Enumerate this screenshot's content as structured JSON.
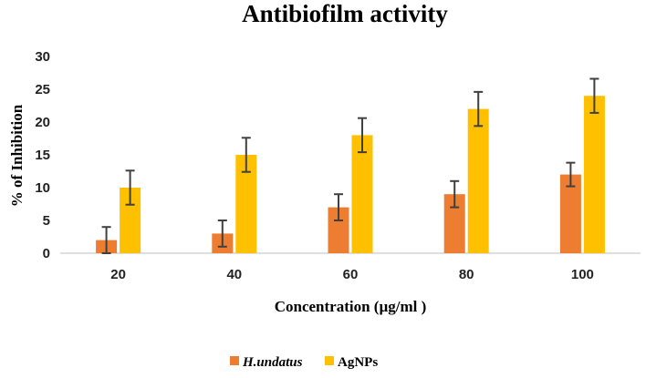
{
  "chart_data": {
    "type": "bar",
    "title": "Antibiofilm activity",
    "xlabel": "Concentration (µg/ml )",
    "ylabel": "% of Inhibition",
    "categories": [
      "20",
      "40",
      "60",
      "80",
      "100"
    ],
    "ylim": [
      0,
      30
    ],
    "yticks": [
      0,
      5,
      10,
      15,
      20,
      25,
      30
    ],
    "grid": false,
    "legend_position": "bottom",
    "series": [
      {
        "name": "H.undatus",
        "color": "#ED7D31",
        "values": [
          2,
          3,
          7,
          9,
          12
        ],
        "errors": [
          2,
          2,
          2,
          2,
          1.8
        ]
      },
      {
        "name": "AgNPs",
        "color": "#FFC000",
        "values": [
          10,
          15,
          18,
          22,
          24
        ],
        "errors": [
          2.6,
          2.6,
          2.6,
          2.6,
          2.6
        ]
      }
    ]
  }
}
